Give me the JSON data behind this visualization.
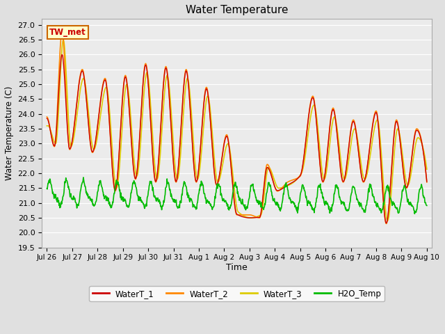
{
  "title": "Water Temperature",
  "xlabel": "Time",
  "ylabel": "Water Temperature (C)",
  "ylim": [
    19.5,
    27.2
  ],
  "yticks": [
    19.5,
    20.0,
    20.5,
    21.0,
    21.5,
    22.0,
    22.5,
    23.0,
    23.5,
    24.0,
    24.5,
    25.0,
    25.5,
    26.0,
    26.5,
    27.0
  ],
  "bg_color": "#e0e0e0",
  "plot_bg_color": "#ebebeb",
  "grid_color": "#ffffff",
  "line_colors": {
    "WaterT_1": "#cc0000",
    "WaterT_2": "#ff8800",
    "WaterT_3": "#ddcc00",
    "H2O_Temp": "#00bb00"
  },
  "line_widths": {
    "WaterT_1": 1.0,
    "WaterT_2": 1.2,
    "WaterT_3": 1.2,
    "H2O_Temp": 1.2
  },
  "annotation_text": "TW_met",
  "tick_labels": [
    "Jul 26",
    "Jul 27",
    "Jul 28",
    "Jul 29",
    "Jul 30",
    "Jul 31",
    "Aug 1",
    "Aug 2",
    "Aug 3",
    "Aug 4",
    "Aug 5",
    "Aug 6",
    "Aug 7",
    "Aug 8",
    "Aug 9",
    "Aug 10"
  ],
  "tick_positions": [
    0,
    1,
    2,
    3,
    4,
    5,
    6,
    7,
    8,
    9,
    10,
    11,
    12,
    13,
    14,
    15
  ]
}
